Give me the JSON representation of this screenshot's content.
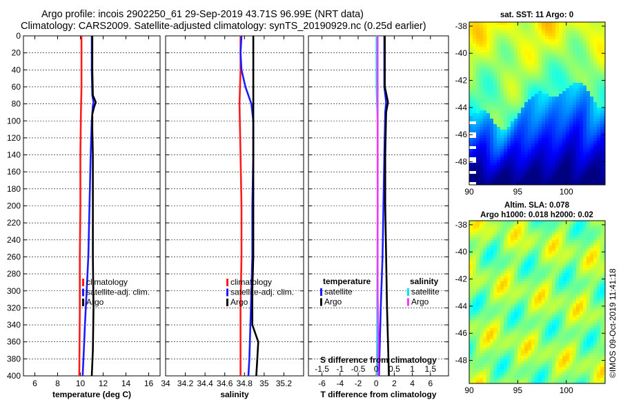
{
  "title": {
    "line1": "Argo profile: incois 2902250_61 29-Sep-2019 43.71S 96.99E (NRT data)",
    "line2": "Climatology: CARS2009. Satellite-adjusted climatology: synTS_20190929.nc (0.25d earlier)"
  },
  "stamp": "©IMOS 09-Oct-2019 11:41:18",
  "colors": {
    "clim": "#ff1a1a",
    "sat": "#1a1aff",
    "argo": "#000000",
    "cyan": "#00e6e6",
    "magenta": "#ff33ff"
  },
  "chart_data": [
    {
      "type": "line",
      "id": "temperature",
      "xlabel": "temperature (deg C)",
      "xlim": [
        5,
        17
      ],
      "xticks": [
        "6",
        "8",
        "10",
        "12",
        "14",
        "16"
      ],
      "xtick_values": [
        6,
        8,
        10,
        12,
        14,
        16
      ],
      "ylim": [
        0,
        400
      ],
      "yticks": [
        "0",
        "20",
        "40",
        "60",
        "80",
        "100",
        "120",
        "140",
        "160",
        "180",
        "200",
        "220",
        "240",
        "260",
        "280",
        "300",
        "320",
        "340",
        "360",
        "380",
        "400"
      ],
      "ytick_values": [
        0,
        20,
        40,
        60,
        80,
        100,
        120,
        140,
        160,
        180,
        200,
        220,
        240,
        260,
        280,
        300,
        320,
        340,
        360,
        380,
        400
      ],
      "grid": "horizontal dashed",
      "series": [
        {
          "name": "climatology",
          "color": "#ff1a1a",
          "depth": [
            0,
            60,
            90,
            140,
            200,
            260,
            320,
            400
          ],
          "values": [
            10.1,
            10.1,
            10.05,
            10.0,
            10.0,
            9.95,
            9.95,
            9.9
          ]
        },
        {
          "name": "satellite-adj. clim.",
          "color": "#1a1aff",
          "depth": [
            0,
            40,
            70,
            78,
            82,
            100,
            140,
            200,
            260,
            300,
            340,
            370,
            400
          ],
          "values": [
            11.0,
            11.0,
            11.05,
            11.15,
            11.1,
            11.0,
            10.9,
            10.8,
            10.7,
            10.55,
            10.4,
            10.3,
            10.2
          ]
        },
        {
          "name": "Argo",
          "color": "#000000",
          "depth": [
            0,
            40,
            70,
            78,
            84,
            92,
            110,
            140,
            200,
            260,
            320,
            370,
            400
          ],
          "values": [
            11.05,
            11.05,
            11.1,
            11.35,
            11.2,
            11.05,
            11.05,
            11.1,
            11.1,
            11.1,
            11.15,
            11.1,
            11.0
          ]
        }
      ],
      "legend": [
        "climatology",
        "satellite-adj. clim.",
        "Argo"
      ],
      "legend_position": "middle-right"
    },
    {
      "type": "line",
      "id": "salinity",
      "xlabel": "salinity",
      "xlim": [
        34,
        35.4
      ],
      "xticks": [
        "34",
        "34.2",
        "34.4",
        "34.6",
        "34.8",
        "35",
        "35.2"
      ],
      "xtick_values": [
        34,
        34.2,
        34.4,
        34.6,
        34.8,
        35,
        35.2
      ],
      "ylim": [
        0,
        400
      ],
      "grid": "horizontal dashed",
      "series": [
        {
          "name": "climatology",
          "color": "#ff1a1a",
          "depth": [
            0,
            40,
            80,
            140,
            200,
            260,
            320,
            380,
            400
          ],
          "values": [
            34.76,
            34.76,
            34.75,
            34.76,
            34.77,
            34.77,
            34.76,
            34.76,
            34.76
          ]
        },
        {
          "name": "satellite-adj. clim.",
          "color": "#1a1aff",
          "depth": [
            0,
            20,
            40,
            60,
            80,
            100,
            140,
            200,
            260,
            300,
            340,
            380,
            400
          ],
          "values": [
            34.77,
            34.76,
            34.77,
            34.81,
            34.87,
            34.89,
            34.89,
            34.88,
            34.88,
            34.87,
            34.86,
            34.85,
            34.84
          ]
        },
        {
          "name": "Argo",
          "color": "#000000",
          "depth": [
            0,
            40,
            80,
            100,
            140,
            200,
            260,
            300,
            340,
            360,
            380,
            400
          ],
          "values": [
            34.89,
            34.89,
            34.89,
            34.89,
            34.89,
            34.89,
            34.89,
            34.88,
            34.88,
            34.94,
            34.93,
            34.92
          ]
        }
      ],
      "legend": [
        "climatology",
        "satellite-adj. clim.",
        "Argo"
      ],
      "legend_position": "middle-right"
    },
    {
      "type": "line",
      "id": "difference",
      "xlabel": "T difference from climatology",
      "xlabel_top": "S difference from climatology",
      "xlim": [
        -7.5,
        8
      ],
      "xticks": [
        "-6",
        "-4",
        "-2",
        "0",
        "2",
        "4",
        "6"
      ],
      "xtick_values": [
        -6,
        -4,
        -2,
        0,
        2,
        4,
        6
      ],
      "x2ticks": [
        "-1.5",
        "-1",
        "-0.5",
        "0",
        "0.5",
        "1",
        "1.5"
      ],
      "x2tick_values": [
        -1.5,
        -1,
        -0.5,
        0,
        0.5,
        1,
        1.5
      ],
      "ylim": [
        0,
        400
      ],
      "grid": "horizontal dashed",
      "series": [
        {
          "name": "temperature satellite",
          "color": "#1a1aff",
          "depth": [
            0,
            60,
            78,
            90,
            140,
            200,
            260,
            320,
            400
          ],
          "values": [
            0.9,
            0.9,
            1.1,
            1.0,
            0.9,
            0.8,
            0.7,
            0.5,
            0.3
          ]
        },
        {
          "name": "temperature Argo",
          "color": "#000000",
          "depth": [
            0,
            60,
            78,
            90,
            140,
            200,
            260,
            320,
            360,
            400
          ],
          "values": [
            0.95,
            0.95,
            1.3,
            1.1,
            1.0,
            1.0,
            1.1,
            1.2,
            1.3,
            1.4
          ]
        },
        {
          "name": "salinity satellite",
          "color": "#00e6e6",
          "depth": [
            0,
            60,
            100,
            200,
            300,
            400
          ],
          "values": [
            0.01,
            0.01,
            0.04,
            0.04,
            0.03,
            0.02
          ]
        },
        {
          "name": "salinity Argo",
          "color": "#ff33ff",
          "depth": [
            0,
            60,
            100,
            200,
            300,
            360,
            400
          ],
          "values": [
            0.04,
            0.04,
            0.04,
            0.04,
            0.04,
            0.06,
            0.05
          ]
        }
      ],
      "legend_groups": {
        "temperature": {
          "title": "temperature",
          "items": [
            "satellite",
            "Argo"
          ]
        },
        "salinity": {
          "title": "salinity",
          "items": [
            "satellite",
            "Argo"
          ]
        }
      }
    },
    {
      "type": "heatmap",
      "id": "sst-map",
      "title": "sat. SST: 11 Argo: 0",
      "xticks": [
        "90",
        "95",
        "100"
      ],
      "xtick_values": [
        90,
        95,
        100
      ],
      "yticks": [
        "-38",
        "-40",
        "-42",
        "-44",
        "-46",
        "-48"
      ],
      "ytick_values": [
        -38,
        -40,
        -42,
        -44,
        -46,
        -48
      ],
      "xlim": [
        90,
        104
      ],
      "ylim": [
        -49.7,
        -37.7
      ]
    },
    {
      "type": "heatmap",
      "id": "sla-map",
      "title_line1": "Altim. SLA: 0.078",
      "title_line2": "Argo h1000: 0.018 h2000: 0.02",
      "xticks": [
        "90",
        "95",
        "100"
      ],
      "xtick_values": [
        90,
        95,
        100
      ],
      "yticks": [
        "-38",
        "-40",
        "-42",
        "-44",
        "-46",
        "-48"
      ],
      "ytick_values": [
        -38,
        -40,
        -42,
        -44,
        -46,
        -48
      ],
      "xlim": [
        90,
        104
      ],
      "ylim": [
        -49.7,
        -37.7
      ]
    }
  ]
}
